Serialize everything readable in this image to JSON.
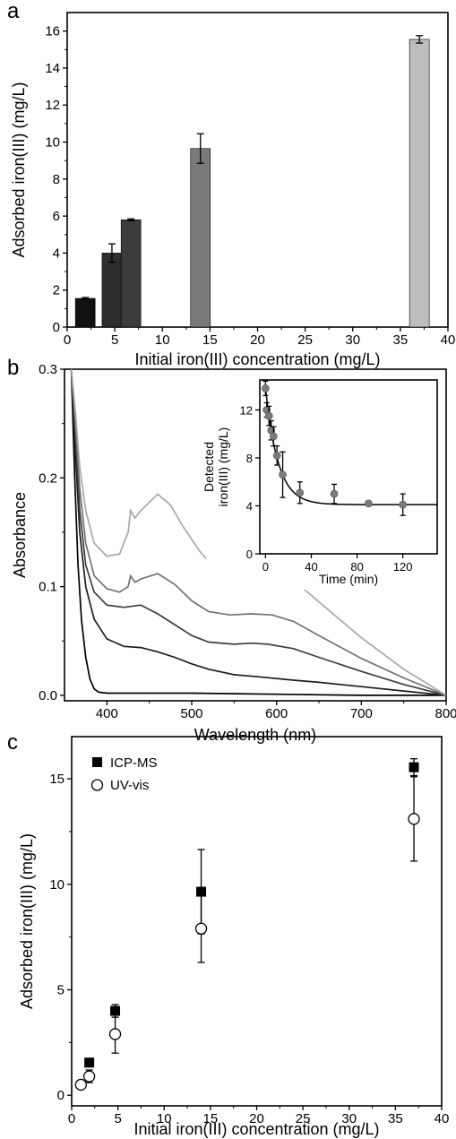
{
  "panels": [
    {
      "letter": "a",
      "chart_data": {
        "type": "bar",
        "xlabel": "Initial iron(III) concentration (mg/L)",
        "ylabel": "Adsorbed iron(III) (mg/L)",
        "xlim": [
          0,
          40
        ],
        "ylim": [
          0,
          17
        ],
        "xticks": [
          0,
          5,
          10,
          15,
          20,
          25,
          30,
          35,
          40
        ],
        "yticks": [
          0,
          2,
          4,
          6,
          8,
          10,
          12,
          14,
          16
        ],
        "bars": [
          {
            "x": 1.9,
            "value": 1.55,
            "error": 0.05,
            "color": "#111111"
          },
          {
            "x": 4.7,
            "value": 4.0,
            "error": 0.5,
            "color": "#2e2e2e"
          },
          {
            "x": 6.7,
            "value": 5.8,
            "error": 0.05,
            "color": "#3c3c3c"
          },
          {
            "x": 14.0,
            "value": 9.65,
            "error": 0.8,
            "color": "#7a7a7a"
          },
          {
            "x": 37.0,
            "value": 15.55,
            "error": 0.2,
            "color": "#bdbdbd"
          }
        ]
      }
    },
    {
      "letter": "b",
      "chart_data": {
        "type": "line",
        "xlabel": "Wavelength (nm)",
        "ylabel": "Absorbance",
        "xlim": [
          350,
          800
        ],
        "ylim": [
          -0.005,
          0.3
        ],
        "xticks": [
          400,
          500,
          600,
          700,
          800
        ],
        "yticks": [
          0.0,
          0.1,
          0.2,
          0.3
        ],
        "ytick_labels": [
          "0.0",
          "0.1",
          "0.2",
          "0.3"
        ],
        "series": [
          {
            "color": "#000000",
            "points": [
              [
                358,
                0.3
              ],
              [
                362,
                0.2
              ],
              [
                366,
                0.12
              ],
              [
                370,
                0.07
              ],
              [
                375,
                0.035
              ],
              [
                380,
                0.015
              ],
              [
                385,
                0.006
              ],
              [
                390,
                0.003
              ],
              [
                400,
                0.002
              ],
              [
                500,
                0.002
              ],
              [
                600,
                0.001
              ],
              [
                700,
                0.0
              ],
              [
                800,
                0.0
              ]
            ]
          },
          {
            "color": "#1e1e1e",
            "points": [
              [
                358,
                0.3
              ],
              [
                363,
                0.22
              ],
              [
                368,
                0.15
              ],
              [
                375,
                0.1
              ],
              [
                385,
                0.07
              ],
              [
                400,
                0.052
              ],
              [
                420,
                0.045
              ],
              [
                440,
                0.044
              ],
              [
                460,
                0.04
              ],
              [
                480,
                0.035
              ],
              [
                500,
                0.029
              ],
              [
                520,
                0.024
              ],
              [
                550,
                0.019
              ],
              [
                580,
                0.017
              ],
              [
                620,
                0.014
              ],
              [
                650,
                0.012
              ],
              [
                700,
                0.008
              ],
              [
                750,
                0.004
              ],
              [
                800,
                0.0
              ]
            ]
          },
          {
            "color": "#3e3e3e",
            "points": [
              [
                358,
                0.3
              ],
              [
                363,
                0.24
              ],
              [
                368,
                0.17
              ],
              [
                375,
                0.12
              ],
              [
                385,
                0.095
              ],
              [
                400,
                0.083
              ],
              [
                420,
                0.081
              ],
              [
                440,
                0.083
              ],
              [
                460,
                0.075
              ],
              [
                480,
                0.065
              ],
              [
                500,
                0.055
              ],
              [
                520,
                0.049
              ],
              [
                550,
                0.047
              ],
              [
                570,
                0.048
              ],
              [
                590,
                0.047
              ],
              [
                620,
                0.043
              ],
              [
                650,
                0.035
              ],
              [
                700,
                0.022
              ],
              [
                750,
                0.01
              ],
              [
                800,
                0.0
              ]
            ]
          },
          {
            "color": "#727272",
            "points": [
              [
                358,
                0.3
              ],
              [
                363,
                0.25
              ],
              [
                368,
                0.19
              ],
              [
                375,
                0.14
              ],
              [
                385,
                0.11
              ],
              [
                400,
                0.098
              ],
              [
                415,
                0.095
              ],
              [
                425,
                0.1
              ],
              [
                428,
                0.11
              ],
              [
                433,
                0.104
              ],
              [
                440,
                0.107
              ],
              [
                460,
                0.112
              ],
              [
                480,
                0.102
              ],
              [
                500,
                0.087
              ],
              [
                520,
                0.077
              ],
              [
                545,
                0.074
              ],
              [
                570,
                0.075
              ],
              [
                595,
                0.074
              ],
              [
                620,
                0.068
              ],
              [
                650,
                0.055
              ],
              [
                700,
                0.034
              ],
              [
                750,
                0.016
              ],
              [
                800,
                0.0
              ]
            ]
          },
          {
            "color": "#a8a8a8",
            "points": [
              [
                358,
                0.3
              ],
              [
                363,
                0.26
              ],
              [
                368,
                0.21
              ],
              [
                375,
                0.17
              ],
              [
                385,
                0.14
              ],
              [
                400,
                0.128
              ],
              [
                415,
                0.13
              ],
              [
                425,
                0.15
              ],
              [
                428,
                0.17
              ],
              [
                433,
                0.163
              ],
              [
                440,
                0.17
              ],
              [
                460,
                0.185
              ],
              [
                475,
                0.175
              ],
              [
                490,
                0.155
              ],
              [
                510,
                0.132
              ],
              [
                530,
                0.114
              ],
              [
                550,
                0.108
              ],
              [
                570,
                0.112
              ],
              [
                595,
                0.113
              ],
              [
                620,
                0.106
              ],
              [
                650,
                0.086
              ],
              [
                700,
                0.053
              ],
              [
                750,
                0.024
              ],
              [
                800,
                0.0
              ]
            ]
          }
        ]
      },
      "inset": {
        "type": "scatter",
        "xlabel": "Time (min)",
        "ylabel_line1": "Detected",
        "ylabel_line2": "iron(III) (mg/L)",
        "xlim": [
          -5,
          150
        ],
        "ylim": [
          0,
          14.5
        ],
        "xticks": [
          0,
          40,
          80,
          120
        ],
        "yticks": [
          0,
          4,
          8,
          12
        ],
        "points": [
          {
            "x": 0,
            "y": 13.8,
            "err": 0.6
          },
          {
            "x": 1,
            "y": 12.0,
            "err": 0.6
          },
          {
            "x": 3,
            "y": 11.5,
            "err": 0.8
          },
          {
            "x": 5,
            "y": 10.3,
            "err": 0.8
          },
          {
            "x": 7,
            "y": 9.8,
            "err": 0.8
          },
          {
            "x": 10,
            "y": 8.2,
            "err": 0.8
          },
          {
            "x": 15,
            "y": 6.6,
            "err": 1.9
          },
          {
            "x": 30,
            "y": 5.1,
            "err": 0.9
          },
          {
            "x": 60,
            "y": 5.0,
            "err": 0.8
          },
          {
            "x": 90,
            "y": 4.2,
            "err": 0.2
          },
          {
            "x": 120,
            "y": 4.1,
            "err": 0.9
          }
        ],
        "fit": {
          "y_inf": 4.1,
          "a": 9.7,
          "tau": 11
        }
      }
    },
    {
      "letter": "c",
      "chart_data": {
        "type": "scatter",
        "xlabel": "Initial iron(III) concentration (mg/L)",
        "ylabel": "Adsorbed iron(III) (mg/L)",
        "xlim": [
          0,
          40
        ],
        "ylim": [
          -0.5,
          17
        ],
        "xticks": [
          0,
          5,
          10,
          15,
          20,
          25,
          30,
          35,
          40
        ],
        "yticks": [
          0,
          5,
          10,
          15
        ],
        "series": [
          {
            "name": "ICP-MS",
            "marker": "square-filled",
            "points": [
              {
                "x": 1.9,
                "y": 1.55,
                "err": 0.2
              },
              {
                "x": 4.7,
                "y": 4.0,
                "err": 0.3
              },
              {
                "x": 14.0,
                "y": 9.65,
                "err": 2.0
              },
              {
                "x": 37.0,
                "y": 15.55,
                "err": 0.4
              }
            ]
          },
          {
            "name": "UV-vis",
            "marker": "circle-open",
            "points": [
              {
                "x": 1.0,
                "y": 0.5,
                "err": 0.0
              },
              {
                "x": 1.9,
                "y": 0.9,
                "err": 0.3
              },
              {
                "x": 4.7,
                "y": 2.9,
                "err": 0.9
              },
              {
                "x": 14.0,
                "y": 7.9,
                "err": 1.6
              },
              {
                "x": 37.0,
                "y": 13.1,
                "err": 2.0
              }
            ]
          }
        ],
        "legend_position": "top-left"
      }
    }
  ]
}
